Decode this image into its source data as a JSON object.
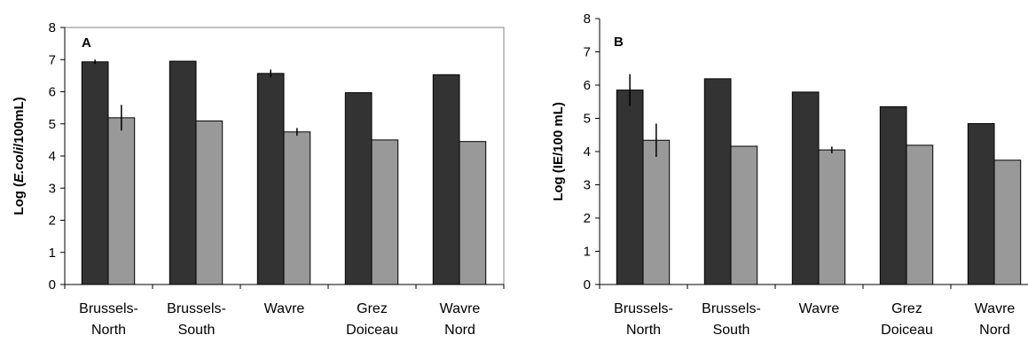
{
  "chart_data": [
    {
      "type": "bar",
      "panel_label": "A",
      "ylabel_prefix": "Log (",
      "ylabel_italic": "E.coli",
      "ylabel_suffix": "/100mL)",
      "ylim": [
        0,
        8
      ],
      "yticks": [
        "0",
        "1",
        "2",
        "3",
        "4",
        "5",
        "6",
        "7",
        "8"
      ],
      "categories": [
        [
          "Brussels-",
          "North"
        ],
        [
          "Brussels-",
          "South"
        ],
        [
          "Wavre"
        ],
        [
          "Grez",
          "Doiceau"
        ],
        [
          "Wavre",
          "Nord"
        ]
      ],
      "grid": false,
      "legend": "none",
      "series": [
        {
          "color": "#333333",
          "values": [
            6.93,
            6.95,
            6.57,
            5.97,
            6.53
          ],
          "err": [
            0.07,
            0.0,
            0.12,
            0.0,
            0.0
          ]
        },
        {
          "color": "#999999",
          "values": [
            5.19,
            5.09,
            4.75,
            4.5,
            4.45
          ],
          "err": [
            0.4,
            0.0,
            0.12,
            0.0,
            0.0
          ]
        }
      ]
    },
    {
      "type": "bar",
      "panel_label": "B",
      "ylabel_prefix": "Log (IE/100 mL)",
      "ylabel_italic": "",
      "ylabel_suffix": "",
      "ylim": [
        0,
        8
      ],
      "yticks": [
        "0",
        "1",
        "2",
        "3",
        "4",
        "5",
        "6",
        "7",
        "8"
      ],
      "categories": [
        [
          "Brussels-",
          "North"
        ],
        [
          "Brussels-",
          "South"
        ],
        [
          "Wavre"
        ],
        [
          "Grez",
          "Doiceau"
        ],
        [
          "Wavre",
          "Nord"
        ]
      ],
      "grid": false,
      "legend": "none",
      "series": [
        {
          "color": "#333333",
          "values": [
            5.85,
            6.19,
            5.79,
            5.35,
            4.84
          ],
          "err": [
            0.48,
            0.0,
            0.0,
            0.0,
            0.0
          ]
        },
        {
          "color": "#999999",
          "values": [
            4.34,
            4.16,
            4.05,
            4.19,
            3.74
          ],
          "err": [
            0.5,
            0.0,
            0.1,
            0.0,
            0.0
          ]
        }
      ]
    }
  ]
}
